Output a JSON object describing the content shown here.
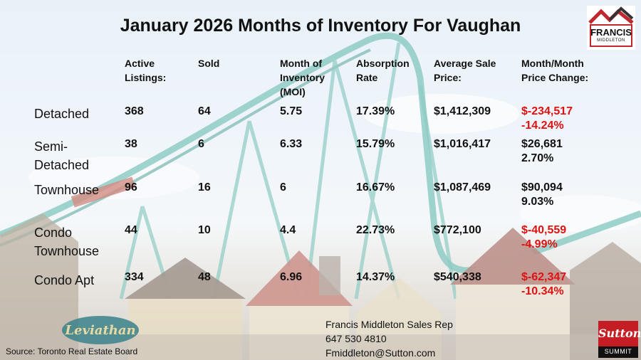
{
  "title": "January 2026 Months of Inventory For Vaughan",
  "headers": [
    [
      "Active",
      "Listings:"
    ],
    [
      "Sold"
    ],
    [
      "Month of",
      "Inventory",
      "(MOI)"
    ],
    [
      "Absorption",
      "Rate"
    ],
    [
      "Average Sale",
      "Price:"
    ],
    [
      "Month/Month",
      "Price Change:"
    ]
  ],
  "rows": [
    {
      "label": [
        "Detached"
      ],
      "active": "368",
      "sold": "64",
      "moi": "5.75",
      "absorption": "17.39%",
      "avg_price": "$1,412,309",
      "change": "$-234,517",
      "change_pct": "-14.24%",
      "negative": true
    },
    {
      "label": [
        "Semi-",
        "Detached"
      ],
      "active": "38",
      "sold": "6",
      "moi": "6.33",
      "absorption": "15.79%",
      "avg_price": "$1,016,417",
      "change": "$26,681",
      "change_pct": "2.70%",
      "negative": false
    },
    {
      "label": [
        "Townhouse"
      ],
      "active": "96",
      "sold": "16",
      "moi": "6",
      "absorption": "16.67%",
      "avg_price": "$1,087,469",
      "change": "$90,094",
      "change_pct": "9.03%",
      "negative": false
    },
    {
      "label": [
        "Condo",
        "Townhouse"
      ],
      "active": "44",
      "sold": "10",
      "moi": "4.4",
      "absorption": "22.73%",
      "avg_price": "$772,100",
      "change": "$-40,559",
      "change_pct": "-4.99%",
      "negative": true
    },
    {
      "label": [
        "Condo Apt"
      ],
      "active": "334",
      "sold": "48",
      "moi": "6.96",
      "absorption": "14.37%",
      "avg_price": "$540,338",
      "change": "$-62,347",
      "change_pct": "-10.34%",
      "negative": true
    }
  ],
  "source": "Source: Toronto Real Estate Board",
  "contact": {
    "name": "Francis Middleton Sales Rep",
    "phone": "647 530 4810",
    "email": "Fmiddleton@Sutton.com"
  },
  "logo": {
    "name": "FRANCIS",
    "sub": "MIDDLETON"
  },
  "brokerage": {
    "name": "Sutton",
    "sub": "SUMMIT"
  },
  "sign_text": "Leviathan",
  "colors": {
    "negative": "#e01010",
    "text": "#111111",
    "brand_red": "#c41e24",
    "coaster": "#3fa79a"
  }
}
